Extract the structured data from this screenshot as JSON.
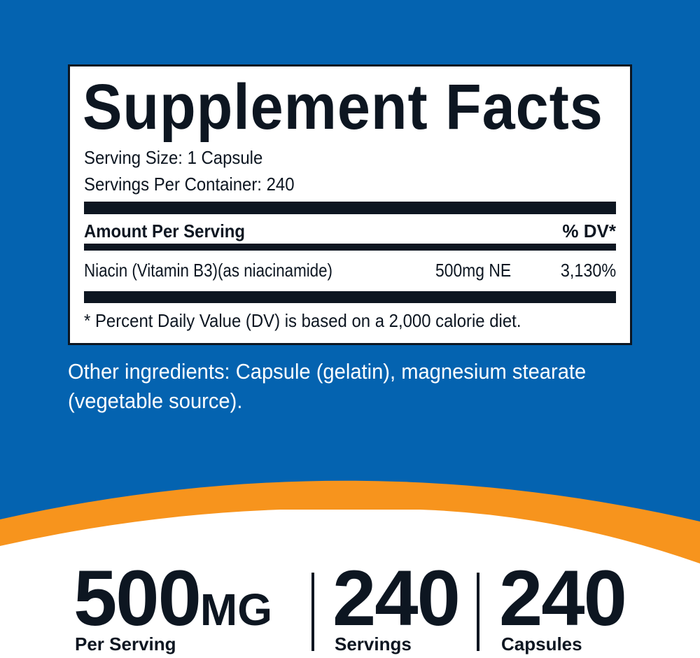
{
  "colors": {
    "blue": "#0463b0",
    "orange": "#f7941d",
    "dark": "#0d1621"
  },
  "facts": {
    "title": "Supplement Facts",
    "serving_size": "Serving Size: 1 Capsule",
    "servings_per_container": "Servings Per Container: 240",
    "amount_header": "Amount Per Serving",
    "dv_header": "% DV*",
    "rows": [
      {
        "name": "Niacin (Vitamin B3)(as niacinamide)",
        "amount": "500mg NE",
        "dv": "3,130%"
      }
    ],
    "footnote": "* Percent Daily Value (DV) is based on a 2,000 calorie diet."
  },
  "other_ingredients": "Other ingredients: Capsule (gelatin), magnesium stearate (vegetable source).",
  "stats": [
    {
      "value": "500",
      "unit": "MG",
      "label": "Per Serving"
    },
    {
      "value": "240",
      "label": "Servings"
    },
    {
      "value": "240",
      "label": "Capsules"
    }
  ]
}
